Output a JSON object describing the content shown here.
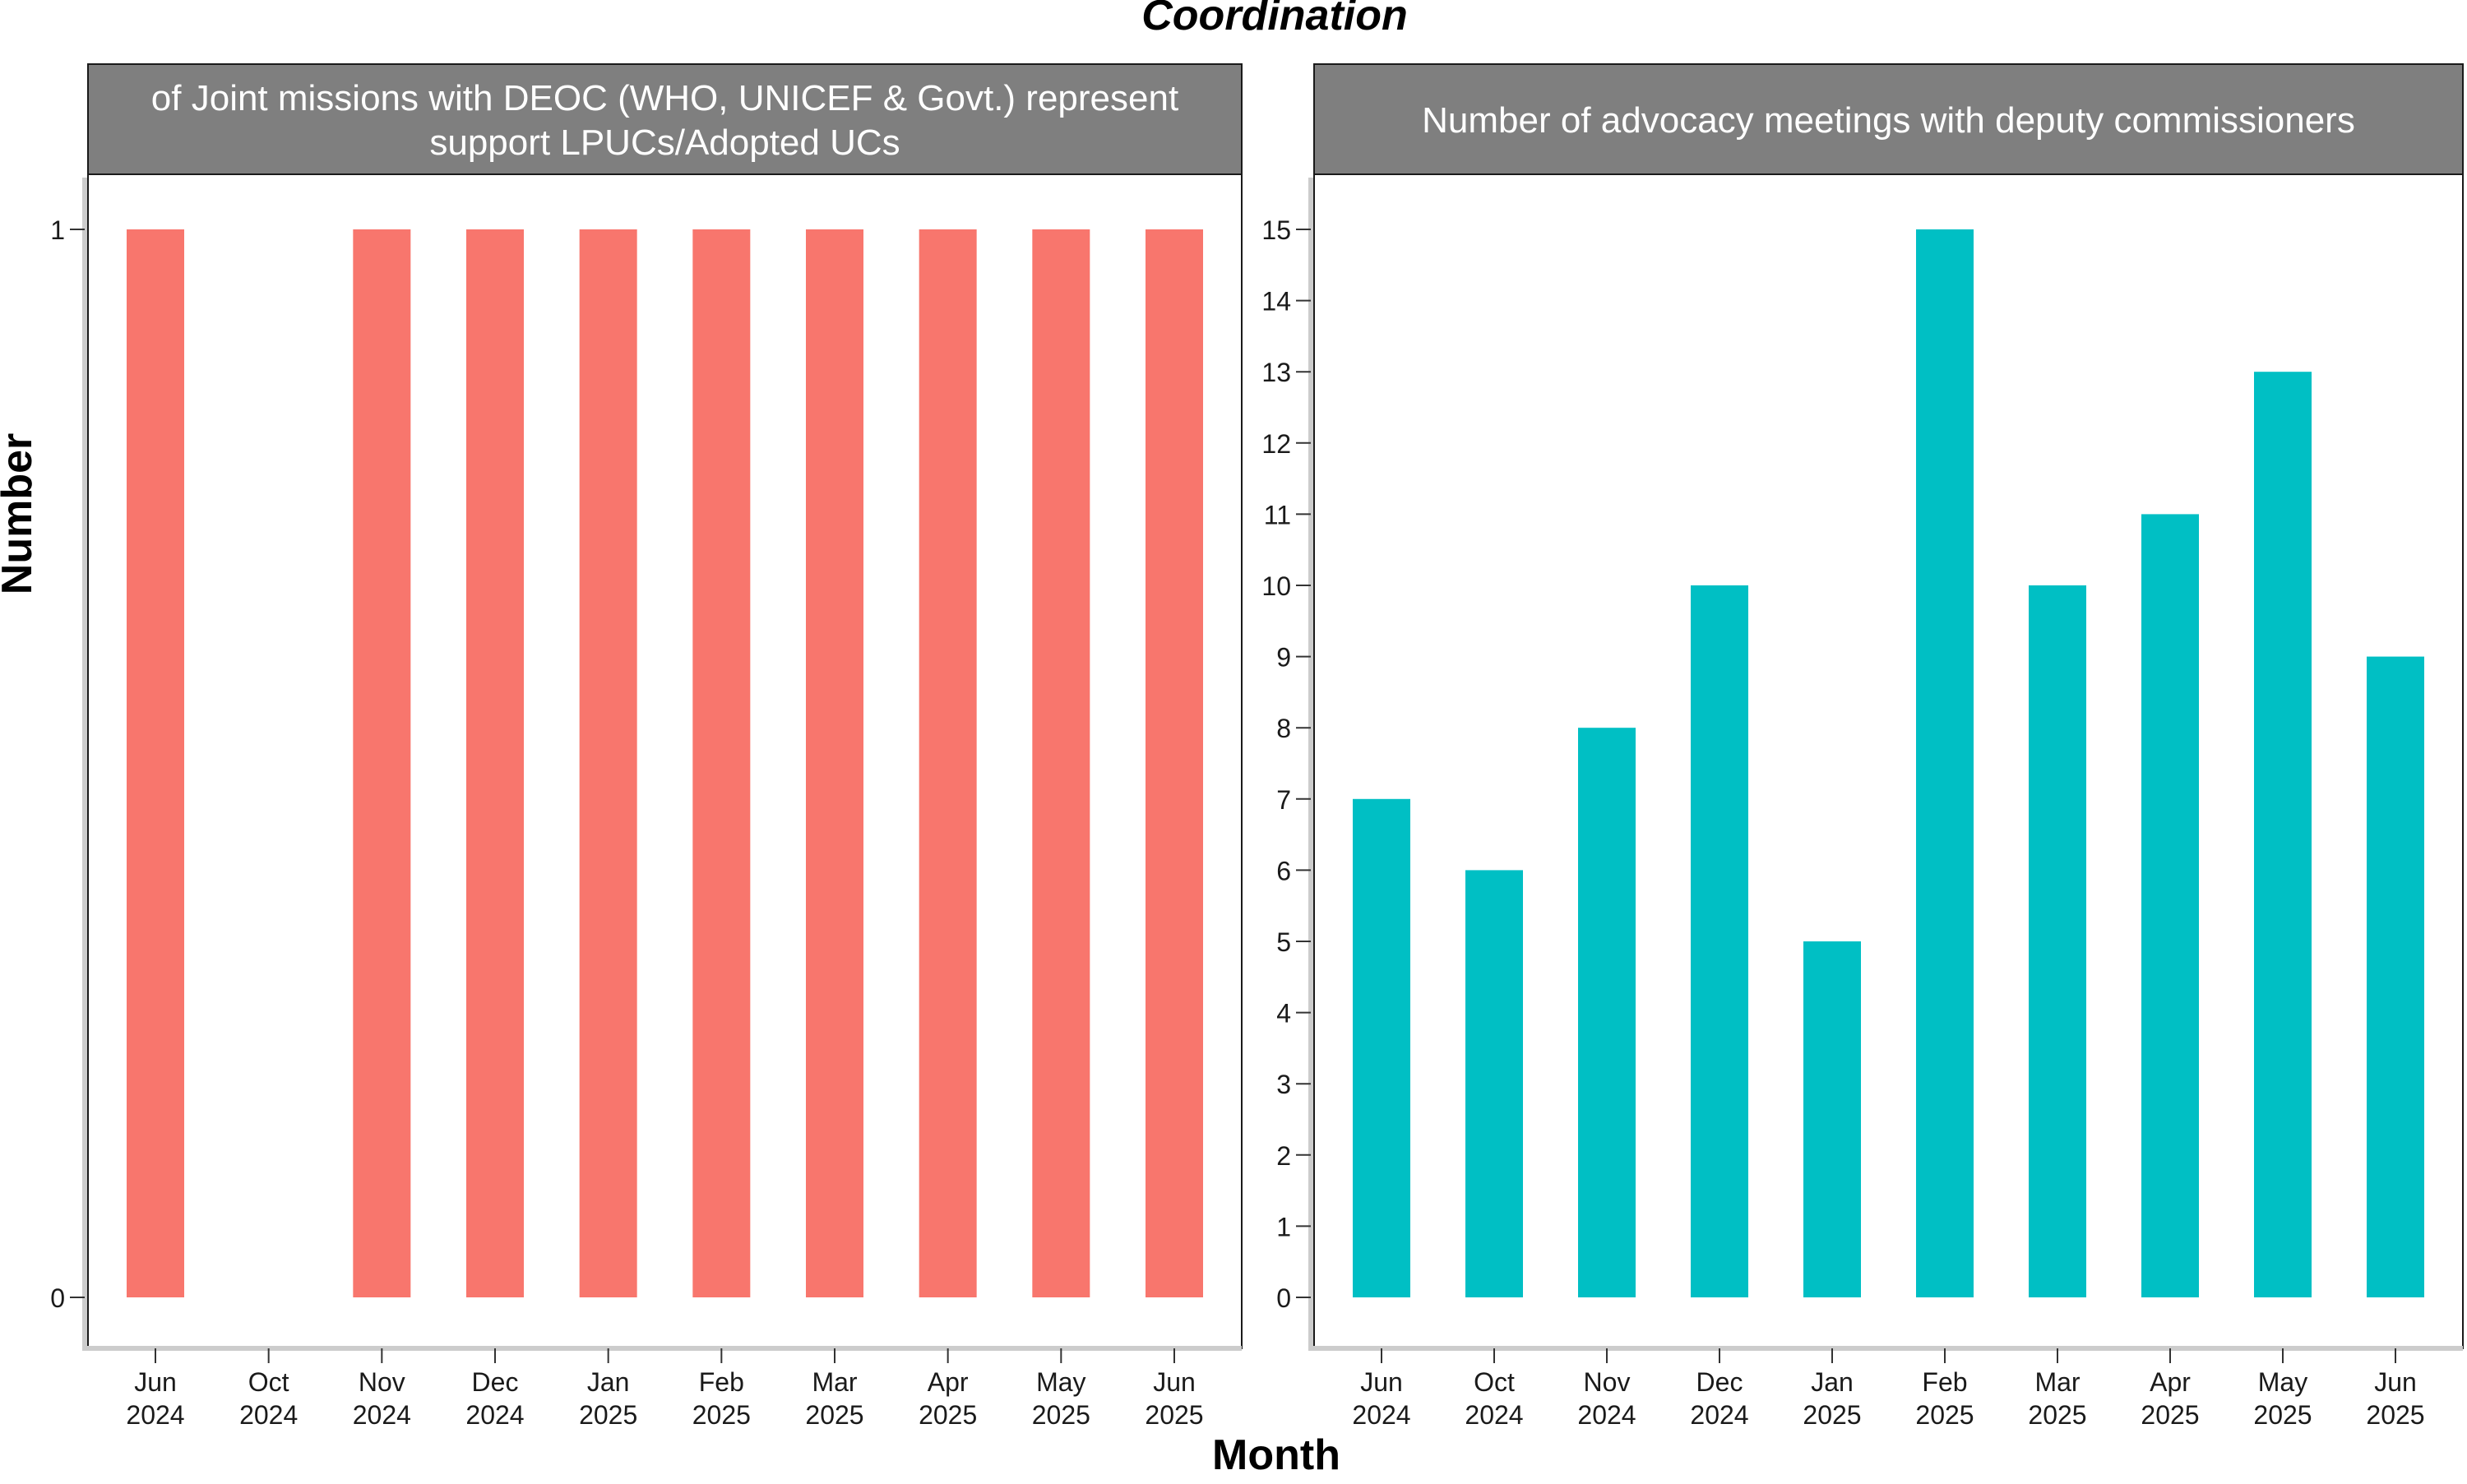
{
  "chart_data": {
    "title": "Coordination",
    "xlabel": "Month",
    "ylabel": "Number",
    "type": "bar",
    "facets": [
      {
        "strip_title_lines": [
          "of Joint missions with DEOC (WHO, UNICEF & Govt.) represent",
          "support LPUCs/Adopted UCs"
        ],
        "color": "#F8766D",
        "categories": [
          [
            "Jun",
            "2024"
          ],
          [
            "Oct",
            "2024"
          ],
          [
            "Nov",
            "2024"
          ],
          [
            "Dec",
            "2024"
          ],
          [
            "Jan",
            "2025"
          ],
          [
            "Feb",
            "2025"
          ],
          [
            "Mar",
            "2025"
          ],
          [
            "Apr",
            "2025"
          ],
          [
            "May",
            "2025"
          ],
          [
            "Jun",
            "2025"
          ]
        ],
        "values": [
          1,
          0,
          1,
          1,
          1,
          1,
          1,
          1,
          1,
          1
        ],
        "ylim": [
          0,
          1
        ],
        "yticks": [
          0,
          1
        ]
      },
      {
        "strip_title_lines": [
          "Number of advocacy meetings with deputy commissioners"
        ],
        "color": "#00BFC4",
        "categories": [
          [
            "Jun",
            "2024"
          ],
          [
            "Oct",
            "2024"
          ],
          [
            "Nov",
            "2024"
          ],
          [
            "Dec",
            "2024"
          ],
          [
            "Jan",
            "2025"
          ],
          [
            "Feb",
            "2025"
          ],
          [
            "Mar",
            "2025"
          ],
          [
            "Apr",
            "2025"
          ],
          [
            "May",
            "2025"
          ],
          [
            "Jun",
            "2025"
          ]
        ],
        "values": [
          7,
          6,
          8,
          10,
          5,
          15,
          10,
          11,
          13,
          9
        ],
        "ylim": [
          0,
          15
        ],
        "yticks": [
          0,
          1,
          2,
          3,
          4,
          5,
          6,
          7,
          8,
          9,
          10,
          11,
          12,
          13,
          14,
          15
        ]
      }
    ]
  }
}
